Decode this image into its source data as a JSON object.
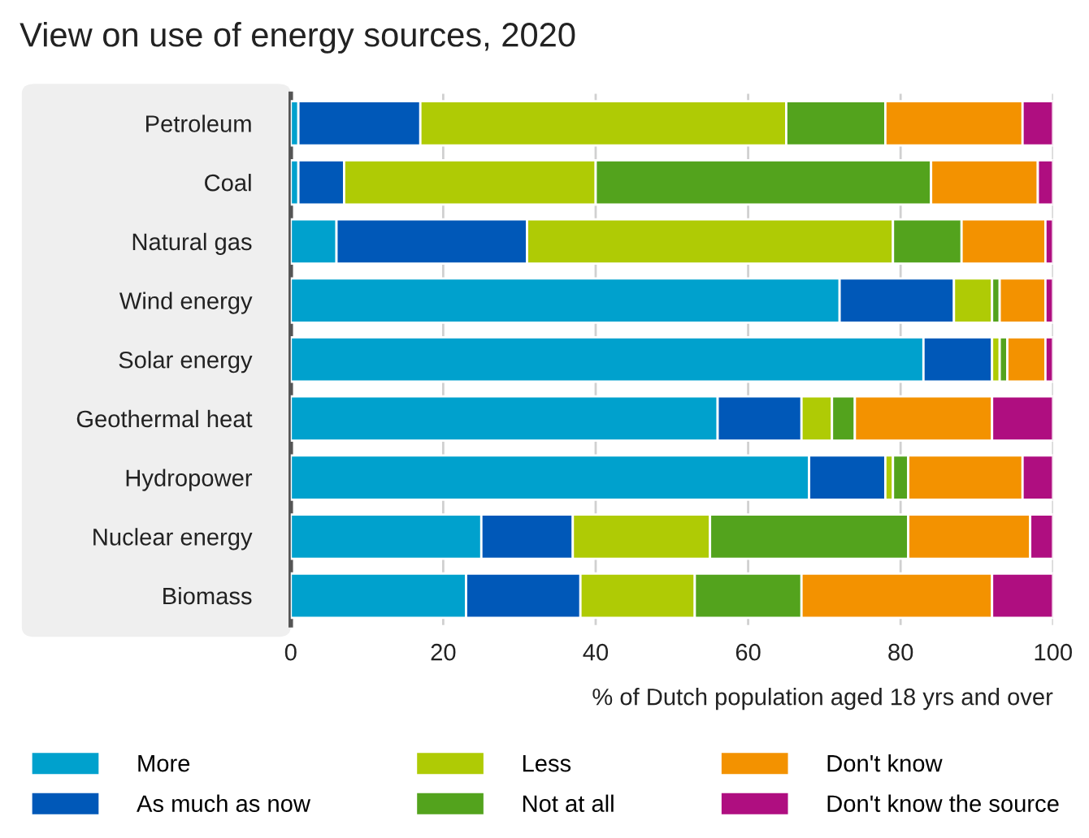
{
  "chart_data": {
    "type": "bar",
    "orientation": "horizontal",
    "stacked": true,
    "title": "View on use of energy sources, 2020",
    "xlabel": "% of Dutch population aged 18 yrs and over",
    "categories": [
      "Petroleum",
      "Coal",
      "Natural gas",
      "Wind energy",
      "Solar energy",
      "Geothermal heat",
      "Hydropower",
      "Nuclear energy",
      "Biomass"
    ],
    "series": [
      {
        "name": "More",
        "color": "#00a1cd",
        "values": [
          1,
          1,
          6,
          72,
          83,
          56,
          68,
          25,
          23
        ]
      },
      {
        "name": "As much as now",
        "color": "#0058b8",
        "values": [
          16,
          6,
          25,
          15,
          9,
          11,
          10,
          12,
          15
        ]
      },
      {
        "name": "Less",
        "color": "#afcb05",
        "values": [
          48,
          33,
          48,
          5,
          1,
          4,
          1,
          18,
          15
        ]
      },
      {
        "name": "Not at all",
        "color": "#53a31d",
        "values": [
          13,
          44,
          9,
          1,
          1,
          3,
          2,
          26,
          14
        ]
      },
      {
        "name": "Don't know",
        "color": "#f39200",
        "values": [
          18,
          14,
          11,
          6,
          5,
          18,
          15,
          16,
          25
        ]
      },
      {
        "name": "Don't know the source",
        "color": "#af0e80",
        "values": [
          4,
          2,
          1,
          1,
          1,
          8,
          4,
          3,
          8
        ]
      }
    ],
    "xlim": [
      0,
      100
    ],
    "xticks": [
      0,
      20,
      40,
      60,
      80,
      100
    ],
    "grid": "x",
    "legend": "bottom"
  }
}
